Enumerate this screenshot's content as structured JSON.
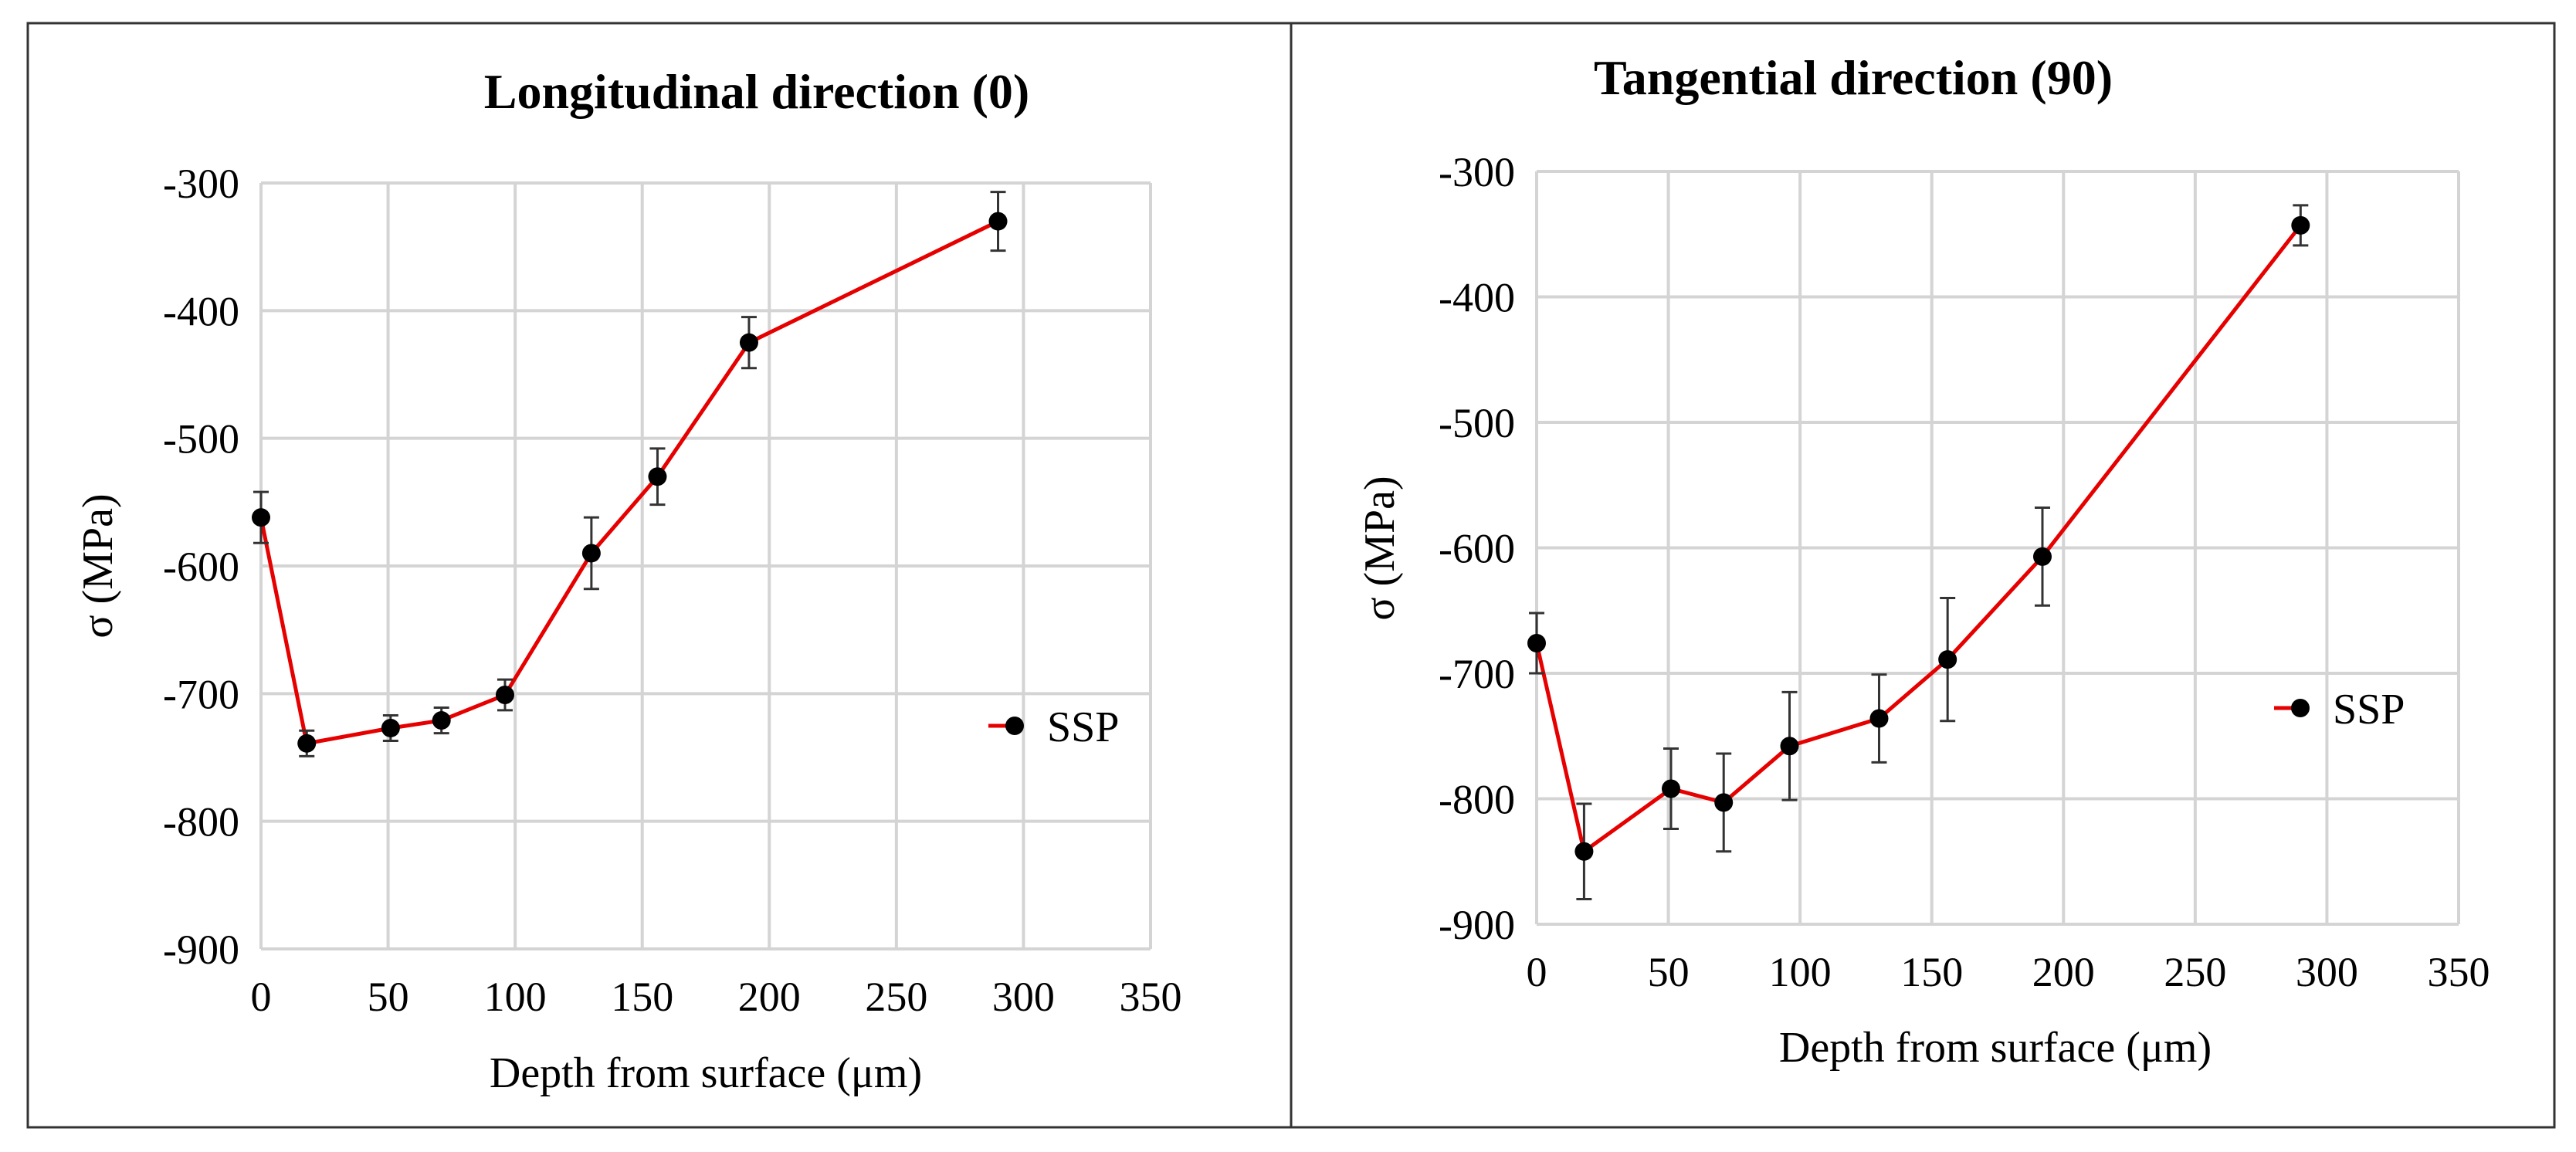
{
  "chart_data": [
    {
      "type": "scatter",
      "title": "Longitudinal direction (0)",
      "xlabel": "Depth from surface (μm)",
      "ylabel": "σ (MPa)",
      "xlim": [
        0,
        350
      ],
      "ylim": [
        -900,
        -300
      ],
      "xticks": [
        "0",
        "50",
        "100",
        "150",
        "200",
        "250",
        "300",
        "350"
      ],
      "yticks": [
        "-300",
        "-400",
        "-500",
        "-600",
        "-700",
        "-800",
        "-900"
      ],
      "grid": true,
      "legend_position": "right",
      "series": [
        {
          "name": "SSP",
          "color": "#e60000",
          "x": [
            0,
            18,
            51,
            71,
            96,
            130,
            156,
            192,
            290
          ],
          "y": [
            -562,
            -739,
            -727,
            -721,
            -701,
            -590,
            -530,
            -425,
            -330
          ],
          "err": [
            20,
            10,
            10,
            10,
            12,
            28,
            22,
            20,
            23
          ]
        }
      ]
    },
    {
      "type": "scatter",
      "title": "Tangential direction (90)",
      "xlabel": "Depth from surface (μm)",
      "ylabel": "σ (MPa)",
      "xlim": [
        0,
        350
      ],
      "ylim": [
        -900,
        -300
      ],
      "xticks": [
        "0",
        "50",
        "100",
        "150",
        "200",
        "250",
        "300",
        "350"
      ],
      "yticks": [
        "-300",
        "-400",
        "-500",
        "-600",
        "-700",
        "-800",
        "-900"
      ],
      "grid": true,
      "legend_position": "right",
      "series": [
        {
          "name": "SSP",
          "color": "#e60000",
          "x": [
            0,
            18,
            51,
            71,
            96,
            130,
            156,
            192,
            290
          ],
          "y": [
            -676,
            -842,
            -792,
            -803,
            -758,
            -736,
            -689,
            -607,
            -343
          ],
          "err": [
            24,
            38,
            32,
            39,
            43,
            35,
            49,
            39,
            16
          ]
        }
      ]
    }
  ]
}
